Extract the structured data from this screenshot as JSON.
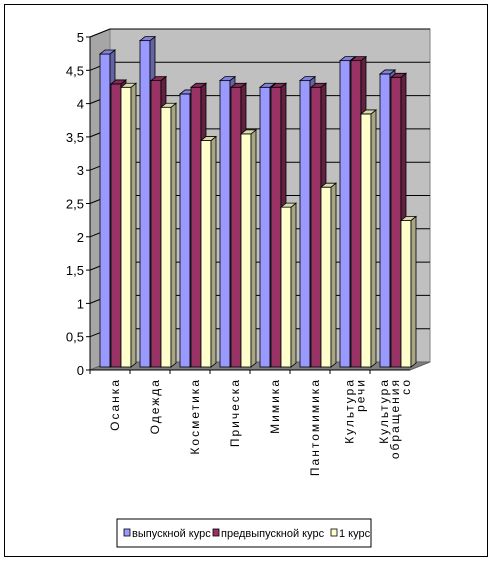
{
  "chart_data": {
    "type": "bar",
    "style": "3d-clustered-column",
    "categories": [
      "Осанка",
      "Одежда",
      "Косметика",
      "Прическа",
      "Мимика",
      "Пантомимика",
      "Культура речи",
      "Культура обращения со"
    ],
    "series": [
      {
        "name": "выпускной курс",
        "color": "#9999ff",
        "values": [
          4.7,
          4.9,
          4.1,
          4.3,
          4.2,
          4.3,
          4.6,
          4.4
        ]
      },
      {
        "name": "предвыпускной курс",
        "color": "#993366",
        "values": [
          4.25,
          4.3,
          4.2,
          4.2,
          4.2,
          4.2,
          4.6,
          4.35
        ]
      },
      {
        "name": "1 курс",
        "color": "#ffffcc",
        "values": [
          4.2,
          3.9,
          3.4,
          3.5,
          2.4,
          2.7,
          3.8,
          2.2
        ]
      }
    ],
    "ylim": [
      0,
      5
    ],
    "yticks": [
      "0",
      "0,5",
      "1",
      "1,5",
      "2",
      "2,5",
      "3",
      "3,5",
      "4",
      "4,5",
      "5"
    ],
    "grid": true,
    "wall_color": "#c0c0c0",
    "floor_color": "#808080",
    "legend_position": "bottom"
  }
}
